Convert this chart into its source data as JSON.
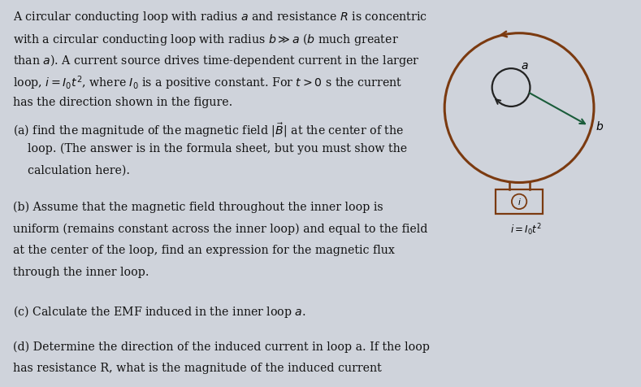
{
  "bg_color": "#cfd3db",
  "text_color": "#111111",
  "fig_width": 7.89,
  "fig_height": 4.76,
  "outer_circle_color": "#7B3A10",
  "inner_circle_color": "#222222",
  "arrow_color": "#1a5c3a",
  "source_color": "#7B3A10",
  "label_color": "#111111",
  "title_lines": [
    "A circular conducting loop with radius $\\mathit{a}$ and resistance $\\mathit{R}$ is concentric",
    "with a circular conducting loop with radius $b \\gg a$ ($b$ much greater",
    "than $\\mathit{a}$). A current source drives time-dependent current in the larger",
    "loop, $i = I_0t^2$, where $I_0$ is a positive constant. For $t>0$ s the current",
    "has the direction shown in the figure."
  ],
  "part_a_lines": [
    "(a) find the magnitude of the magnetic field $|\\vec{B}|$ at the center of the",
    "    loop. (The answer is in the formula sheet, but you must show the",
    "    calculation here)."
  ],
  "part_b_lines": [
    "(b) Assume that the magnetic field throughout the inner loop is",
    "uniform (remains constant across the inner loop) and equal to the field",
    "at the center of the loop, find an expression for the magnetic flux",
    "through the inner loop."
  ],
  "part_c_lines": [
    "(c) Calculate the EMF induced in the inner loop $\\mathit{a}$."
  ],
  "part_d_lines": [
    "(d) Determine the direction of the induced current in loop a. If the loop",
    "has resistance R, what is the magnitude of the induced current"
  ]
}
